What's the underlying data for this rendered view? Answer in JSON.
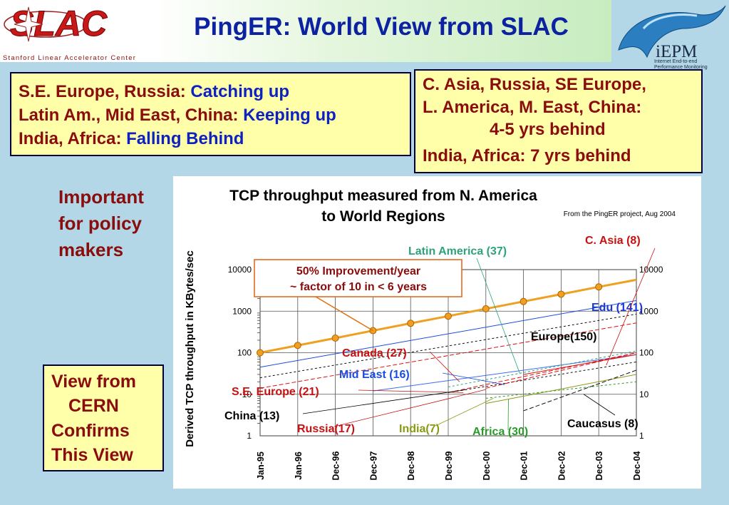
{
  "header": {
    "title": "PingER: World View from SLAC",
    "logo_text": "SLAC",
    "logo_subtitle": "Stanford Linear Accelerator Center",
    "iepm_logo": "iEPM",
    "iepm_subtitle_1": "Internet End-to-end",
    "iepm_subtitle_2": "Performance Monitoring"
  },
  "status_box": {
    "rows": [
      {
        "label": "S.E. Europe, Russia: ",
        "status": "Catching up"
      },
      {
        "label": "Latin Am., Mid East, China: ",
        "status": "Keeping up"
      },
      {
        "label": "India, Africa: ",
        "status": "Falling Behind"
      }
    ]
  },
  "behind_box": {
    "line1": "C. Asia, Russia, SE Europe,",
    "line2": "L. America, M. East, China:",
    "line3": "4-5 yrs behind",
    "line4": "India, Africa: 7 yrs behind"
  },
  "policy_note": [
    "Important",
    "for policy",
    "makers"
  ],
  "cern_box": [
    "View from",
    "CERN",
    "Confirms",
    "This View"
  ],
  "chart_data": {
    "type": "line",
    "title_line1": "TCP throughput measured from N. America",
    "title_line2": "to World Regions",
    "source": "From the PingER project, Aug 2004",
    "ylabel": "Derived TCP throughput in KBytes/sec",
    "y_scale": "log",
    "ylim": [
      1,
      10000
    ],
    "y_ticks": [
      "1",
      "10",
      "100",
      "1000",
      "10000"
    ],
    "categories": [
      "Jan-95",
      "Jan-96",
      "Dec-96",
      "Dec-97",
      "Dec-98",
      "Dec-99",
      "Dec-00",
      "Dec-01",
      "Dec-02",
      "Dec-03",
      "Dec-04"
    ],
    "grid": true,
    "trend_annotation": [
      "50% Improvement/year",
      "~ factor of 10 in < 6 years"
    ],
    "trend": {
      "color": "#f0a020",
      "x": [
        0,
        1,
        2,
        3,
        4,
        5,
        6,
        7,
        8,
        9
      ],
      "y": [
        100,
        150,
        225,
        340,
        510,
        760,
        1140,
        1710,
        2560,
        3840
      ]
    },
    "series": [
      {
        "name": "Edu (141)",
        "color": "#1a4de0",
        "x0": 0,
        "y0": 45,
        "x1": 10,
        "y1": 1800
      },
      {
        "name": "Europe(150)",
        "color": "#101010",
        "x0": 0,
        "y0": 25,
        "x1": 10,
        "y1": 850
      },
      {
        "name": "Canada (27)",
        "color": "#e01010",
        "x0": 0,
        "y0": 14,
        "x1": 10,
        "y1": 520
      },
      {
        "name": "Mid East (16)",
        "color": "#3a6ef0",
        "x0": 3,
        "y0": 12,
        "x1": 10,
        "y1": 90
      },
      {
        "name": "Latin America (37)",
        "color": "#2ea37a",
        "x0": 5,
        "y0": 15,
        "x1": 10,
        "y1": 110
      },
      {
        "name": "S.E. Europe (21)",
        "color": "#e01010",
        "x0": 5,
        "y0": 11,
        "x1": 10,
        "y1": 100
      },
      {
        "name": "C. Asia (8)",
        "color": "#e01010",
        "x0": 7,
        "y0": 30,
        "x1": 10,
        "y1": 90
      },
      {
        "name": "China (13)",
        "color": "#101010",
        "x0": 5,
        "y0": 11,
        "x1": 10,
        "y1": 60
      },
      {
        "name": "Russia(17)",
        "color": "#e01010",
        "x0": 6,
        "y0": 14,
        "x1": 10,
        "y1": 100
      },
      {
        "name": "India(7)",
        "color": "#8a9a10",
        "x0": 6,
        "y0": 6,
        "x1": 10,
        "y1": 30
      },
      {
        "name": "Africa (30)",
        "color": "#2a9a2a",
        "x0": 6,
        "y0": 8,
        "x1": 10,
        "y1": 20
      },
      {
        "name": "Caucasus (8)",
        "color": "#101010",
        "x0": 7,
        "y0": 4,
        "x1": 10,
        "y1": 38
      }
    ]
  }
}
